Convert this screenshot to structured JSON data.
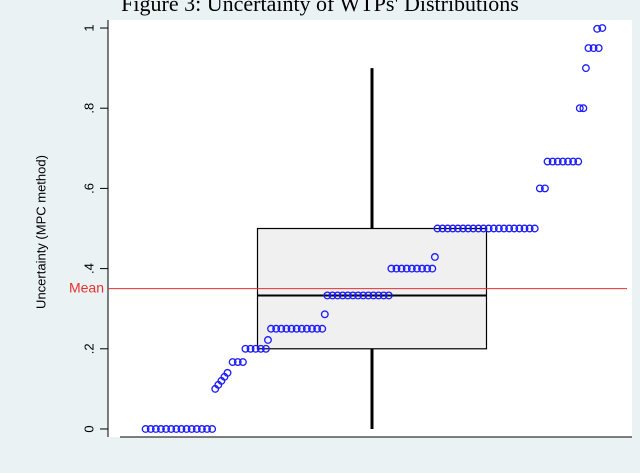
{
  "chart_data": {
    "type": "box",
    "title": "Figure 3: Uncertainty of WTPs' Distributions",
    "ylabel": "Uncertainty (MPC method)",
    "ylim": [
      -0.02,
      1.02
    ],
    "yticks": [
      0,
      {
        "value": 0.2,
        "label": ".2"
      },
      {
        "value": 0.4,
        "label": ".4"
      },
      {
        "value": 0.6,
        "label": ".6"
      },
      {
        "value": 0.8,
        "label": ".8"
      },
      1
    ],
    "box": {
      "min": 0,
      "q1": 0.2,
      "median": 0.333,
      "q3": 0.5,
      "max": 0.9,
      "color": "#000000",
      "fill": "#f0f0f0"
    },
    "mean": {
      "label": "Mean",
      "value": 0.35,
      "color": "#e8312f"
    },
    "points": {
      "color": "#1a1aff",
      "xlim": [
        0,
        100
      ],
      "x": [
        5,
        6,
        7,
        8,
        9,
        10,
        11,
        12,
        13,
        14,
        15,
        16,
        17,
        18,
        18.6,
        19.2,
        19.8,
        20.4,
        21,
        22,
        23,
        24,
        24.5,
        25.5,
        26.5,
        27.5,
        28.5,
        28.9,
        29.5,
        30.5,
        31.5,
        32.5,
        33.5,
        34.5,
        35.5,
        36.5,
        37.5,
        38.5,
        39.5,
        40,
        40.5,
        41.5,
        42.5,
        43.5,
        44.5,
        45.5,
        46.5,
        47.5,
        48.5,
        49.5,
        50.5,
        51.5,
        52.5,
        53,
        54,
        55,
        56,
        57,
        58,
        59,
        60,
        61,
        61.5,
        62,
        63,
        64,
        65,
        66,
        67,
        68,
        69,
        70,
        71,
        72,
        73,
        74,
        75,
        76,
        77,
        78,
        79,
        80,
        81,
        82,
        83,
        83.5,
        84.5,
        85.5,
        86.5,
        87.5,
        88.5,
        89.5,
        89.8,
        90.5,
        91,
        91.5,
        92.5,
        93.5,
        93.2,
        94.2
      ],
      "values": [
        0,
        0,
        0,
        0,
        0,
        0,
        0,
        0,
        0,
        0,
        0,
        0,
        0,
        0,
        0.1,
        0.11,
        0.12,
        0.13,
        0.14,
        0.167,
        0.167,
        0.167,
        0.2,
        0.2,
        0.2,
        0.2,
        0.2,
        0.222,
        0.25,
        0.25,
        0.25,
        0.25,
        0.25,
        0.25,
        0.25,
        0.25,
        0.25,
        0.25,
        0.25,
        0.286,
        0.333,
        0.333,
        0.333,
        0.333,
        0.333,
        0.333,
        0.333,
        0.333,
        0.333,
        0.333,
        0.333,
        0.333,
        0.333,
        0.4,
        0.4,
        0.4,
        0.4,
        0.4,
        0.4,
        0.4,
        0.4,
        0.4,
        0.429,
        0.5,
        0.5,
        0.5,
        0.5,
        0.5,
        0.5,
        0.5,
        0.5,
        0.5,
        0.5,
        0.5,
        0.5,
        0.5,
        0.5,
        0.5,
        0.5,
        0.5,
        0.5,
        0.5,
        0.5,
        0.6,
        0.6,
        0.667,
        0.667,
        0.667,
        0.667,
        0.667,
        0.667,
        0.667,
        0.8,
        0.8,
        0.9,
        0.95,
        0.95,
        0.95,
        0.998,
        1
      ]
    }
  }
}
